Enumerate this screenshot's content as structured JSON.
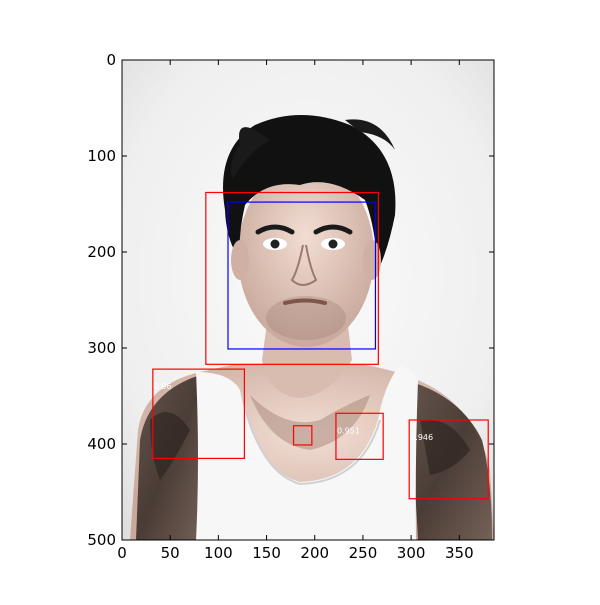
{
  "figure": {
    "x_range": [
      0,
      386
    ],
    "y_range": [
      0,
      500
    ],
    "y_inverted": true,
    "x_ticks": [
      0,
      50,
      100,
      150,
      200,
      250,
      300,
      350
    ],
    "y_ticks": [
      0,
      100,
      200,
      300,
      400,
      500
    ]
  },
  "image": {
    "description_icon": "portrait-photo",
    "background_color": "#f4f4f4"
  },
  "boxes": {
    "ground_truth": [
      {
        "x0": 110,
        "y0": 148,
        "x1": 263,
        "y1": 301,
        "color": "#0000ff"
      }
    ],
    "detections": [
      {
        "x0": 87,
        "y0": 138,
        "x1": 266,
        "y1": 317,
        "color": "#ff0000",
        "label": ""
      },
      {
        "x0": 32,
        "y0": 322,
        "x1": 127,
        "y1": 415,
        "color": "#ff0000",
        "label": "0.96"
      },
      {
        "x0": 178,
        "y0": 381,
        "x1": 197,
        "y1": 401,
        "color": "#ff0000",
        "label": ""
      },
      {
        "x0": 222,
        "y0": 368,
        "x1": 271,
        "y1": 416,
        "color": "#ff0000",
        "label": "0.951"
      },
      {
        "x0": 298,
        "y0": 375,
        "x1": 380,
        "y1": 457,
        "color": "#ff0000",
        "label": "0.946"
      }
    ]
  }
}
